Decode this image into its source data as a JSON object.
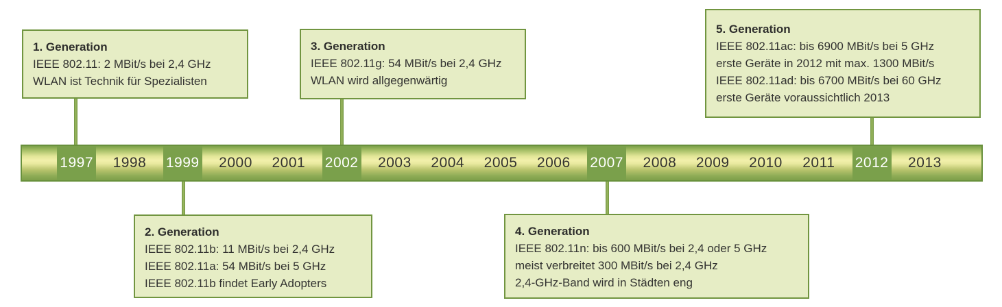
{
  "diagram": {
    "subject": "WLAN Generationen Zeitleiste",
    "colors": {
      "box_fill": "#e6edc5",
      "box_border": "#719540",
      "bar_border": "#68903c",
      "bar_gradient_center": "#f2f0ab",
      "bar_gradient_edge": "#7b9f49",
      "year_highlight": "#7aa04b",
      "year_highlight_text": "#ffffff",
      "connector": "#7da24d",
      "text": "#333331"
    }
  },
  "boxes": [
    {
      "title": "1. Generation",
      "lines": [
        "IEEE 802.11: 2 MBit/s bei 2,4 GHz",
        "WLAN ist Technik für Spezialisten"
      ],
      "anchor_year": "1997",
      "position": "above"
    },
    {
      "title": "2. Generation",
      "lines": [
        "IEEE 802.11b: 11 MBit/s bei 2,4 GHz",
        "IEEE 802.11a: 54 MBit/s bei 5 GHz",
        "IEEE 802.11b findet Early Adopters"
      ],
      "anchor_year": "1999",
      "position": "below"
    },
    {
      "title": "3. Generation",
      "lines": [
        "IEEE 802.11g: 54 MBit/s bei 2,4 GHz",
        "WLAN wird allgegenwärtig"
      ],
      "anchor_year": "2002",
      "position": "above"
    },
    {
      "title": "4. Generation",
      "lines": [
        "IEEE 802.11n: bis 600 MBit/s bei 2,4 oder 5 GHz",
        "meist verbreitet 300 MBit/s bei 2,4 GHz",
        "2,4-GHz-Band wird in Städten eng"
      ],
      "anchor_year": "2007",
      "position": "below"
    },
    {
      "title": "5. Generation",
      "lines": [
        "IEEE 802.11ac: bis 6900 MBit/s bei 5 GHz",
        "erste Geräte in 2012 mit max. 1300 MBit/s",
        "IEEE 802.11ad: bis 6700 MBit/s bei 60 GHz",
        "erste Geräte voraussichtlich 2013"
      ],
      "anchor_year": "2012",
      "position": "above"
    }
  ],
  "timeline": {
    "years": [
      {
        "label": "1997",
        "highlighted": true
      },
      {
        "label": "1998",
        "highlighted": false
      },
      {
        "label": "1999",
        "highlighted": true
      },
      {
        "label": "2000",
        "highlighted": false
      },
      {
        "label": "2001",
        "highlighted": false
      },
      {
        "label": "2002",
        "highlighted": true
      },
      {
        "label": "2003",
        "highlighted": false
      },
      {
        "label": "2004",
        "highlighted": false
      },
      {
        "label": "2005",
        "highlighted": false
      },
      {
        "label": "2006",
        "highlighted": false
      },
      {
        "label": "2007",
        "highlighted": true
      },
      {
        "label": "2008",
        "highlighted": false
      },
      {
        "label": "2009",
        "highlighted": false
      },
      {
        "label": "2010",
        "highlighted": false
      },
      {
        "label": "2011",
        "highlighted": false
      },
      {
        "label": "2012",
        "highlighted": true
      },
      {
        "label": "2013",
        "highlighted": false
      }
    ]
  }
}
